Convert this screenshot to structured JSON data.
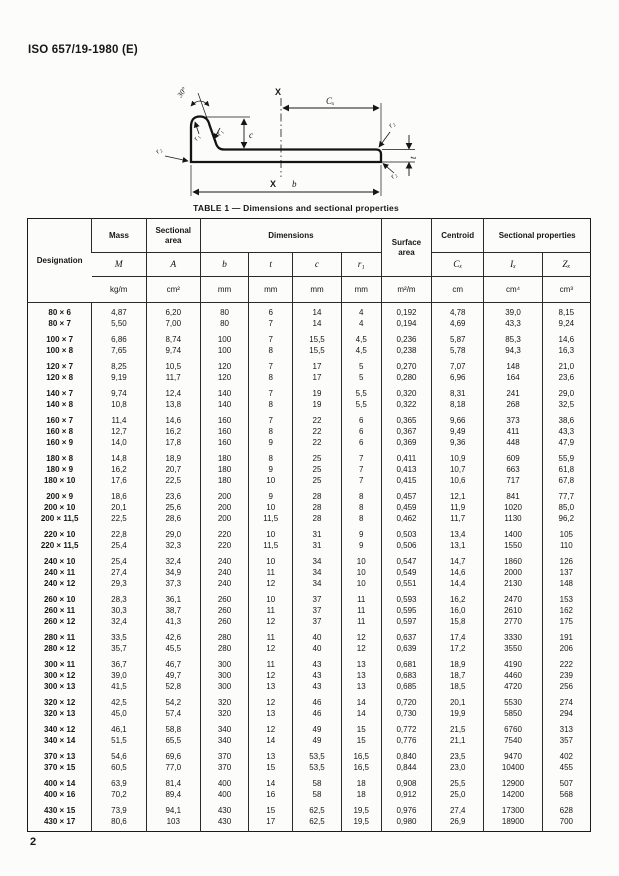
{
  "page": {
    "doc_ref": "ISO 657/19-1980 (E)",
    "page_number": "2"
  },
  "figure": {
    "labels": {
      "x_top": "X",
      "x_bottom": "X",
      "cx": "Cₓ",
      "c": "c",
      "b": "b",
      "t": "t",
      "r1_a": "r₁",
      "r1_b": "r₁",
      "r2_left": "r₂",
      "r2_top_right": "r₂",
      "r2_bottom_right": "r₂",
      "angle": "30°"
    }
  },
  "table": {
    "caption": "TABLE 1 — Dimensions and sectional properties",
    "header": {
      "designation": "Designation",
      "mass": "Mass",
      "sectional_area": "Sectional area",
      "dimensions": "Dimensions",
      "surface_area": "Surface area",
      "centroid": "Centroid",
      "sectional_properties": "Sectional properties",
      "symbols": [
        "M",
        "A",
        "b",
        "t",
        "c",
        "r₁",
        "Cₓ",
        "Iₓ",
        "Zₓ"
      ],
      "units": [
        "kg/m",
        "cm²",
        "mm",
        "mm",
        "mm",
        "mm",
        "m²/m",
        "cm",
        "cm⁴",
        "cm³"
      ]
    },
    "groups": [
      {
        "rows": [
          [
            "80 × 6",
            "4,87",
            "6,20",
            "80",
            "6",
            "14",
            "4",
            "0,192",
            "4,78",
            "39,0",
            "8,15"
          ],
          [
            "80 × 7",
            "5,50",
            "7,00",
            "80",
            "7",
            "14",
            "4",
            "0,194",
            "4,69",
            "43,3",
            "9,24"
          ]
        ]
      },
      {
        "rows": [
          [
            "100 × 7",
            "6,86",
            "8,74",
            "100",
            "7",
            "15,5",
            "4,5",
            "0,236",
            "5,87",
            "85,3",
            "14,6"
          ],
          [
            "100 × 8",
            "7,65",
            "9,74",
            "100",
            "8",
            "15,5",
            "4,5",
            "0,238",
            "5,78",
            "94,3",
            "16,3"
          ]
        ]
      },
      {
        "rows": [
          [
            "120 × 7",
            "8,25",
            "10,5",
            "120",
            "7",
            "17",
            "5",
            "0,270",
            "7,07",
            "148",
            "21,0"
          ],
          [
            "120 × 8",
            "9,19",
            "11,7",
            "120",
            "8",
            "17",
            "5",
            "0,280",
            "6,96",
            "164",
            "23,6"
          ]
        ]
      },
      {
        "rows": [
          [
            "140 × 7",
            "9,74",
            "12,4",
            "140",
            "7",
            "19",
            "5,5",
            "0,320",
            "8,31",
            "241",
            "29,0"
          ],
          [
            "140 × 8",
            "10,8",
            "13,8",
            "140",
            "8",
            "19",
            "5,5",
            "0,322",
            "8,18",
            "268",
            "32,5"
          ]
        ]
      },
      {
        "rows": [
          [
            "160 × 7",
            "11,4",
            "14,6",
            "160",
            "7",
            "22",
            "6",
            "0,365",
            "9,66",
            "373",
            "38,6"
          ],
          [
            "160 × 8",
            "12,7",
            "16,2",
            "160",
            "8",
            "22",
            "6",
            "0,367",
            "9,49",
            "411",
            "43,3"
          ],
          [
            "160 × 9",
            "14,0",
            "17,8",
            "160",
            "9",
            "22",
            "6",
            "0,369",
            "9,36",
            "448",
            "47,9"
          ]
        ]
      },
      {
        "rows": [
          [
            "180 × 8",
            "14,8",
            "18,9",
            "180",
            "8",
            "25",
            "7",
            "0,411",
            "10,9",
            "609",
            "55,9"
          ],
          [
            "180 × 9",
            "16,2",
            "20,7",
            "180",
            "9",
            "25",
            "7",
            "0,413",
            "10,7",
            "663",
            "61,8"
          ],
          [
            "180 × 10",
            "17,6",
            "22,5",
            "180",
            "10",
            "25",
            "7",
            "0,415",
            "10,6",
            "717",
            "67,8"
          ]
        ]
      },
      {
        "rows": [
          [
            "200 × 9",
            "18,6",
            "23,6",
            "200",
            "9",
            "28",
            "8",
            "0,457",
            "12,1",
            "841",
            "77,7"
          ],
          [
            "200 × 10",
            "20,1",
            "25,6",
            "200",
            "10",
            "28",
            "8",
            "0,459",
            "11,9",
            "1020",
            "85,0"
          ],
          [
            "200 × 11,5",
            "22,5",
            "28,6",
            "200",
            "11,5",
            "28",
            "8",
            "0,462",
            "11,7",
            "1130",
            "96,2"
          ]
        ]
      },
      {
        "rows": [
          [
            "220 × 10",
            "22,8",
            "29,0",
            "220",
            "10",
            "31",
            "9",
            "0,503",
            "13,4",
            "1400",
            "105"
          ],
          [
            "220 × 11,5",
            "25,4",
            "32,3",
            "220",
            "11,5",
            "31",
            "9",
            "0,506",
            "13,1",
            "1550",
            "110"
          ]
        ]
      },
      {
        "rows": [
          [
            "240 × 10",
            "25,4",
            "32,4",
            "240",
            "10",
            "34",
            "10",
            "0,547",
            "14,7",
            "1860",
            "126"
          ],
          [
            "240 × 11",
            "27,4",
            "34,9",
            "240",
            "11",
            "34",
            "10",
            "0,549",
            "14,6",
            "2000",
            "137"
          ],
          [
            "240 × 12",
            "29,3",
            "37,3",
            "240",
            "12",
            "34",
            "10",
            "0,551",
            "14,4",
            "2130",
            "148"
          ]
        ]
      },
      {
        "rows": [
          [
            "260 × 10",
            "28,3",
            "36,1",
            "260",
            "10",
            "37",
            "11",
            "0,593",
            "16,2",
            "2470",
            "153"
          ],
          [
            "260 × 11",
            "30,3",
            "38,7",
            "260",
            "11",
            "37",
            "11",
            "0,595",
            "16,0",
            "2610",
            "162"
          ],
          [
            "260 × 12",
            "32,4",
            "41,3",
            "260",
            "12",
            "37",
            "11",
            "0,597",
            "15,8",
            "2770",
            "175"
          ]
        ]
      },
      {
        "rows": [
          [
            "280 × 11",
            "33,5",
            "42,6",
            "280",
            "11",
            "40",
            "12",
            "0,637",
            "17,4",
            "3330",
            "191"
          ],
          [
            "280 × 12",
            "35,7",
            "45,5",
            "280",
            "12",
            "40",
            "12",
            "0,639",
            "17,2",
            "3550",
            "206"
          ]
        ]
      },
      {
        "rows": [
          [
            "300 × 11",
            "36,7",
            "46,7",
            "300",
            "11",
            "43",
            "13",
            "0,681",
            "18,9",
            "4190",
            "222"
          ],
          [
            "300 × 12",
            "39,0",
            "49,7",
            "300",
            "12",
            "43",
            "13",
            "0,683",
            "18,7",
            "4460",
            "239"
          ],
          [
            "300 × 13",
            "41,5",
            "52,8",
            "300",
            "13",
            "43",
            "13",
            "0,685",
            "18,5",
            "4720",
            "256"
          ]
        ]
      },
      {
        "rows": [
          [
            "320 × 12",
            "42,5",
            "54,2",
            "320",
            "12",
            "46",
            "14",
            "0,720",
            "20,1",
            "5530",
            "274"
          ],
          [
            "320 × 13",
            "45,0",
            "57,4",
            "320",
            "13",
            "46",
            "14",
            "0,730",
            "19,9",
            "5850",
            "294"
          ]
        ]
      },
      {
        "rows": [
          [
            "340 × 12",
            "46,1",
            "58,8",
            "340",
            "12",
            "49",
            "15",
            "0,772",
            "21,5",
            "6760",
            "313"
          ],
          [
            "340 × 14",
            "51,5",
            "65,5",
            "340",
            "14",
            "49",
            "15",
            "0,776",
            "21,1",
            "7540",
            "357"
          ]
        ]
      },
      {
        "rows": [
          [
            "370 × 13",
            "54,6",
            "69,6",
            "370",
            "13",
            "53,5",
            "16,5",
            "0,840",
            "23,5",
            "9470",
            "402"
          ],
          [
            "370 × 15",
            "60,5",
            "77,0",
            "370",
            "15",
            "53,5",
            "16,5",
            "0,844",
            "23,0",
            "10400",
            "455"
          ]
        ]
      },
      {
        "rows": [
          [
            "400 × 14",
            "63,9",
            "81,4",
            "400",
            "14",
            "58",
            "18",
            "0,908",
            "25,5",
            "12900",
            "507"
          ],
          [
            "400 × 16",
            "70,2",
            "89,4",
            "400",
            "16",
            "58",
            "18",
            "0,912",
            "25,0",
            "14200",
            "568"
          ]
        ]
      },
      {
        "rows": [
          [
            "430 × 15",
            "73,9",
            "94,1",
            "430",
            "15",
            "62,5",
            "19,5",
            "0,976",
            "27,4",
            "17300",
            "628"
          ],
          [
            "430 × 17",
            "80,6",
            "103",
            "430",
            "17",
            "62,5",
            "19,5",
            "0,980",
            "26,9",
            "18900",
            "700"
          ]
        ]
      }
    ]
  }
}
